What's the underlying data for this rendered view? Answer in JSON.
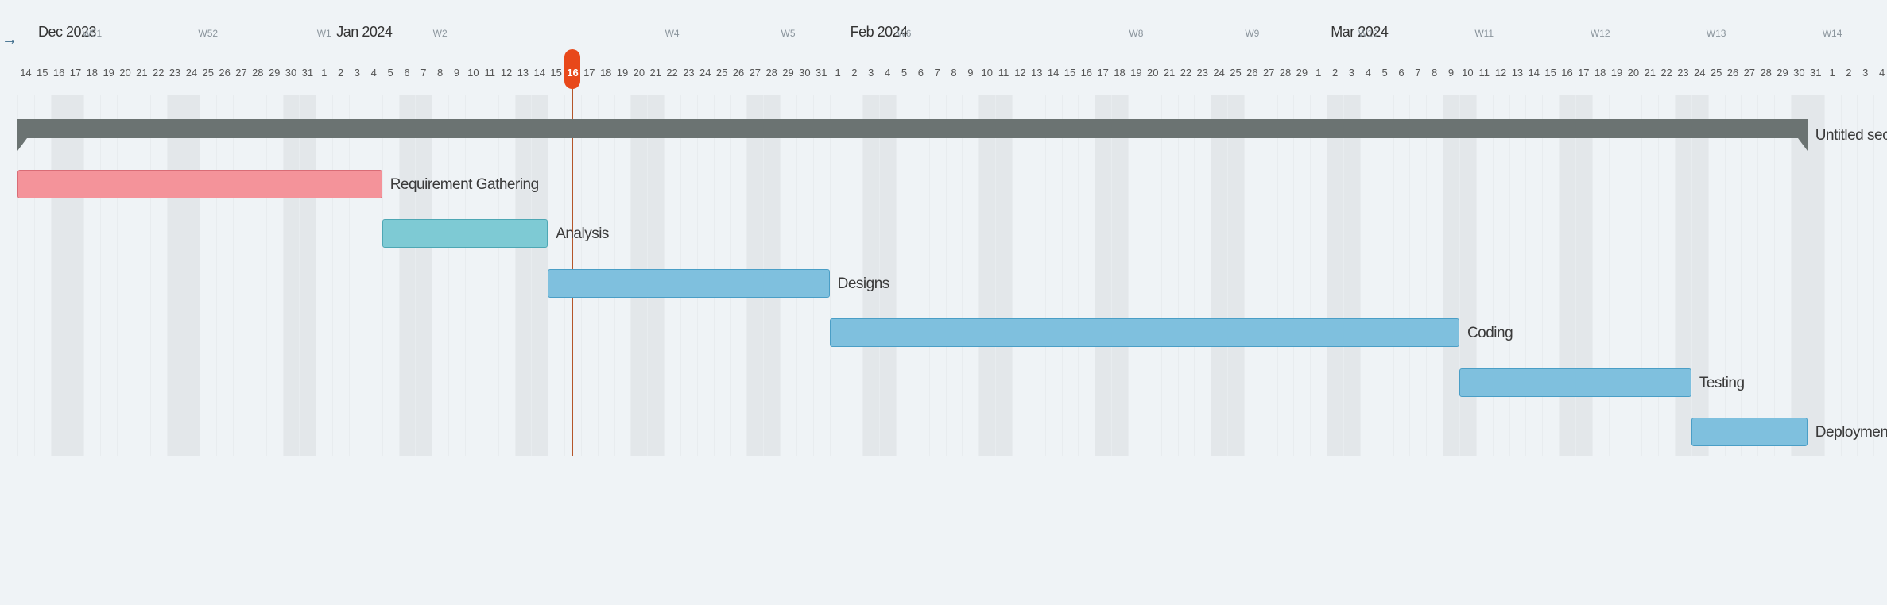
{
  "collapse_icon": "arrow-right-icon",
  "colors": {
    "pink": "#f4939a",
    "teal": "#7ecad4",
    "blue": "#7fc0de",
    "section": "#6b7372",
    "today": "#e8481a"
  },
  "timeline": {
    "start_date": "2023-12-14",
    "end_date": "2024-04-04",
    "today": "2024-01-16",
    "months": [
      "Dec 2023",
      "Jan 2024",
      "Feb 2024",
      "Mar 2024"
    ],
    "weeks": [
      "W51",
      "W52",
      "W1",
      "W2",
      "W4",
      "W5",
      "W6",
      "W8",
      "W9",
      "W10",
      "W11",
      "W12",
      "W13",
      "W14"
    ]
  },
  "section": {
    "label": "Untitled section"
  },
  "tasks": [
    {
      "name": "Requirement Gathering",
      "start": "2023-12-14",
      "end": "2024-01-04",
      "color": "pink"
    },
    {
      "name": "Analysis",
      "start": "2024-01-05",
      "end": "2024-01-14",
      "color": "teal"
    },
    {
      "name": "Designs",
      "start": "2024-01-15",
      "end": "2024-01-31",
      "color": "blue"
    },
    {
      "name": "Coding",
      "start": "2024-02-01",
      "end": "2024-03-09",
      "color": "blue"
    },
    {
      "name": "Testing",
      "start": "2024-03-10",
      "end": "2024-03-23",
      "color": "blue"
    },
    {
      "name": "Deployment",
      "start": "2024-03-24",
      "end": "2024-03-30",
      "color": "blue"
    }
  ]
}
